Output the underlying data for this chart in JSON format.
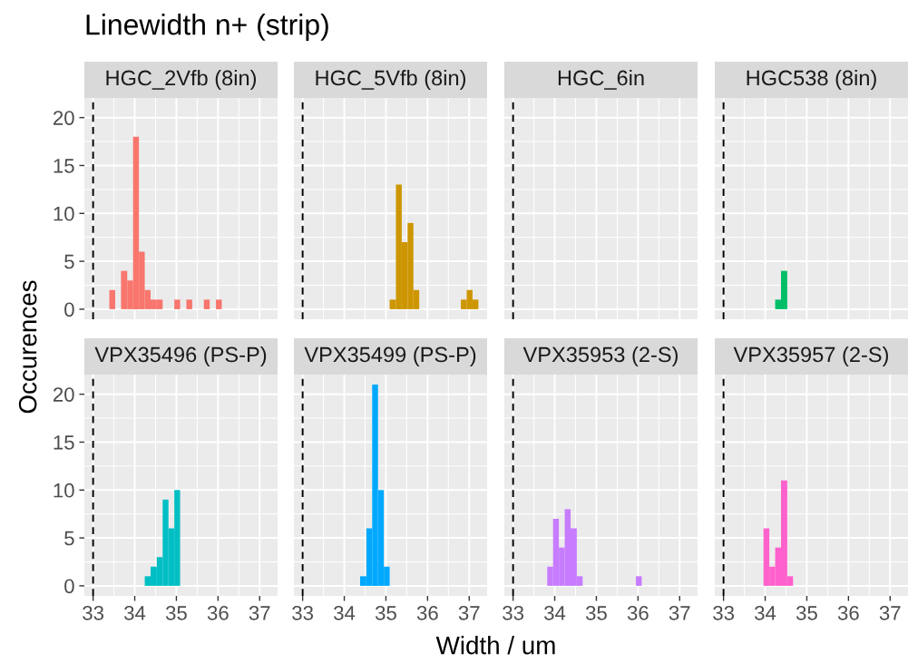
{
  "chart_data": [
    {
      "type": "histogram",
      "title": "HGC_2Vfb (8in)",
      "annotations": [
        "Linewidth n+ (strip)",
        "Width / um",
        "Occurences"
      ],
      "color": "#f8766d",
      "bins": [
        33.39,
        33.53,
        33.67,
        33.82,
        33.96,
        34.1,
        34.24,
        34.38,
        34.53,
        34.67,
        34.81,
        34.95,
        35.09,
        35.24,
        35.38,
        35.52,
        35.66,
        35.8,
        35.95,
        36.09
      ],
      "values": [
        2,
        0,
        4,
        3,
        18,
        6,
        2,
        1,
        1,
        0,
        0,
        1,
        0,
        1,
        0,
        0,
        1,
        0,
        1
      ],
      "xlim": [
        32.79,
        37.43
      ],
      "ylim": [
        -1.05,
        22.05
      ],
      "xticks": [
        33,
        34,
        35,
        36,
        37
      ],
      "yticks": [
        0,
        5,
        10,
        15,
        20
      ],
      "grid": true,
      "tick_labels": "y",
      "ref_lines": [
        {
          "axis": "x",
          "value": 33,
          "color": "#000000",
          "line_style": "dashed"
        }
      ]
    },
    {
      "type": "histogram",
      "title": "HGC_5Vfb (8in)",
      "color": "#cd9600",
      "bins": [
        35.09,
        35.24,
        35.38,
        35.52,
        35.66,
        35.8,
        35.95,
        36.09,
        36.23,
        36.37,
        36.51,
        36.66,
        36.8,
        36.94,
        37.08,
        37.22
      ],
      "values": [
        1,
        13,
        7,
        9,
        2,
        0,
        0,
        0,
        0,
        0,
        0,
        0,
        1,
        2,
        1
      ],
      "xlim": [
        32.79,
        37.43
      ],
      "ylim": [
        -1.05,
        22.05
      ],
      "xticks": [
        33,
        34,
        35,
        36,
        37
      ],
      "yticks": [
        0,
        5,
        10,
        15,
        20
      ],
      "grid": true,
      "tick_labels": false,
      "ref_lines": [
        {
          "axis": "x",
          "value": 33,
          "color": "#000000",
          "line_style": "dashed"
        }
      ]
    },
    {
      "type": "histogram",
      "title": "HGC_6in",
      "xlim": [
        32.79,
        37.43
      ],
      "ylim": [
        -1.05,
        22.05
      ],
      "xticks": [
        33,
        34,
        35,
        36,
        37
      ],
      "yticks": [
        0,
        5,
        10,
        15,
        20
      ],
      "grid": true,
      "tick_labels": false,
      "ref_lines": [
        {
          "axis": "x",
          "value": 33,
          "color": "#000000",
          "line_style": "dashed"
        }
      ]
    },
    {
      "type": "histogram",
      "title": "HGC538 (8in)",
      "color": "#00be67",
      "bins": [
        34.24,
        34.38,
        34.53
      ],
      "values": [
        1,
        4
      ],
      "xlim": [
        32.79,
        37.43
      ],
      "ylim": [
        -1.05,
        22.05
      ],
      "xticks": [
        33,
        34,
        35,
        36,
        37
      ],
      "yticks": [
        0,
        5,
        10,
        15,
        20
      ],
      "grid": true,
      "tick_labels": false,
      "ref_lines": [
        {
          "axis": "x",
          "value": 33,
          "color": "#000000",
          "line_style": "dashed"
        }
      ]
    },
    {
      "type": "histogram",
      "title": "VPX35496 (PS-P)",
      "color": "#00bfc4",
      "bins": [
        34.24,
        34.38,
        34.53,
        34.67,
        34.81,
        34.95,
        35.09
      ],
      "values": [
        1,
        2,
        3,
        9,
        6,
        10
      ],
      "xlim": [
        32.79,
        37.43
      ],
      "ylim": [
        -1.05,
        22.05
      ],
      "xticks": [
        33,
        34,
        35,
        36,
        37
      ],
      "yticks": [
        0,
        5,
        10,
        15,
        20
      ],
      "grid": true,
      "ref_lines": [
        {
          "axis": "x",
          "value": 33,
          "color": "#000000",
          "line_style": "dashed"
        }
      ]
    },
    {
      "type": "histogram",
      "title": "VPX35499 (PS-P)",
      "color": "#00a9ff",
      "bins": [
        34.38,
        34.53,
        34.67,
        34.81,
        34.95,
        35.09
      ],
      "values": [
        1,
        6,
        21,
        10,
        2
      ],
      "xlim": [
        32.79,
        37.43
      ],
      "ylim": [
        -1.05,
        22.05
      ],
      "xticks": [
        33,
        34,
        35,
        36,
        37
      ],
      "yticks": [
        0,
        5,
        10,
        15,
        20
      ],
      "grid": true,
      "tick_labels": "x",
      "ref_lines": [
        {
          "axis": "x",
          "value": 33,
          "color": "#000000",
          "line_style": "dashed"
        }
      ]
    },
    {
      "type": "histogram",
      "title": "VPX35953 (2-S)",
      "color": "#c77cff",
      "bins": [
        33.82,
        33.96,
        34.1,
        34.24,
        34.38,
        34.53,
        34.67,
        34.81,
        34.95,
        35.09,
        35.24,
        35.38,
        35.52,
        35.66,
        35.8,
        35.95,
        36.09
      ],
      "values": [
        2,
        7,
        4,
        8,
        6,
        1,
        0,
        0,
        0,
        0,
        0,
        0,
        0,
        0,
        0,
        1
      ],
      "xlim": [
        32.79,
        37.43
      ],
      "ylim": [
        -1.05,
        22.05
      ],
      "xticks": [
        33,
        34,
        35,
        36,
        37
      ],
      "yticks": [
        0,
        5,
        10,
        15,
        20
      ],
      "grid": true,
      "tick_labels": "x",
      "ref_lines": [
        {
          "axis": "x",
          "value": 33,
          "color": "#000000",
          "line_style": "dashed"
        }
      ]
    },
    {
      "type": "histogram",
      "title": "VPX35957 (2-S)",
      "color": "#ff61cc",
      "bins": [
        33.96,
        34.1,
        34.24,
        34.38,
        34.53,
        34.67
      ],
      "values": [
        6,
        2,
        4,
        11,
        1
      ],
      "xlim": [
        32.79,
        37.43
      ],
      "ylim": [
        -1.05,
        22.05
      ],
      "xticks": [
        33,
        34,
        35,
        36,
        37
      ],
      "yticks": [
        0,
        5,
        10,
        15,
        20
      ],
      "grid": true,
      "tick_labels": "x",
      "ref_lines": [
        {
          "axis": "x",
          "value": 33,
          "color": "#000000",
          "line_style": "dashed"
        }
      ]
    }
  ]
}
